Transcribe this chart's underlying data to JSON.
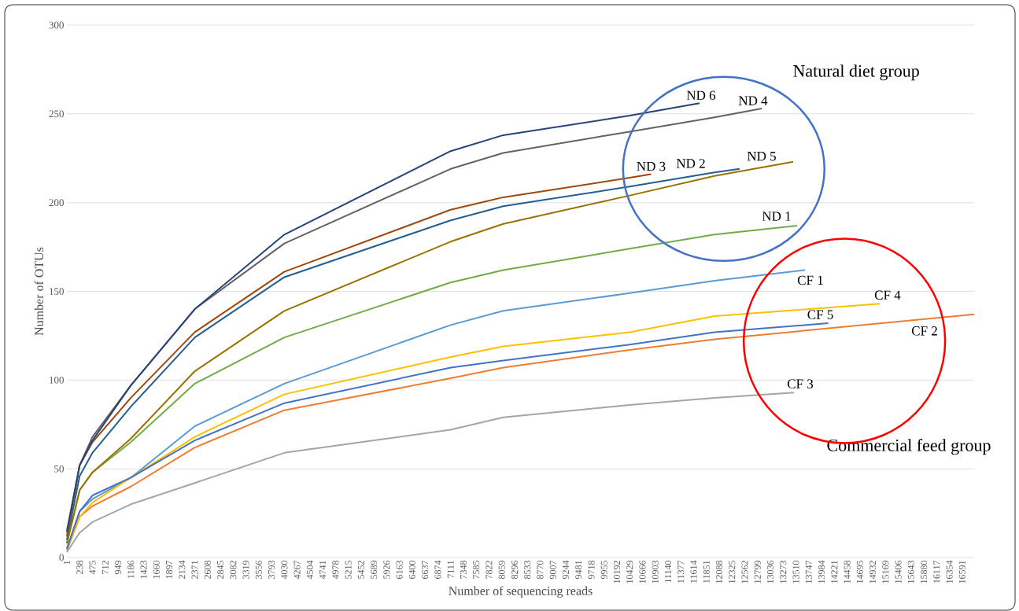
{
  "chart_data": {
    "type": "line",
    "xlabel": "Number of sequencing reads",
    "ylabel": "Number of OTUs",
    "xlim": [
      1,
      16812
    ],
    "ylim": [
      0,
      300
    ],
    "yticks": [
      0,
      50,
      100,
      150,
      200,
      250,
      300
    ],
    "xticks": [
      1,
      238,
      475,
      712,
      949,
      1186,
      1423,
      1660,
      1897,
      2134,
      2371,
      2608,
      2845,
      3082,
      3319,
      3556,
      3793,
      4030,
      4267,
      4504,
      4741,
      4978,
      5215,
      5452,
      5689,
      5926,
      6163,
      6400,
      6637,
      6874,
      7111,
      7348,
      7585,
      7822,
      8059,
      8296,
      8533,
      8770,
      9007,
      9244,
      9481,
      9718,
      9955,
      10192,
      10429,
      10666,
      10903,
      11140,
      11377,
      11614,
      11851,
      12088,
      12325,
      12562,
      12799,
      13036,
      13273,
      13510,
      13747,
      13984,
      14221,
      14458,
      14695,
      14932,
      15169,
      15406,
      15643,
      15880,
      16117,
      16354,
      16591
    ],
    "grid": "y",
    "series": [
      {
        "name": "ND 1",
        "color": "#70ad47",
        "x": [
          1,
          238,
          475,
          1186,
          2371,
          4030,
          7111,
          8086,
          10429,
          12000,
          13531
        ],
        "values": [
          8,
          38,
          48,
          65,
          98,
          124,
          155,
          162,
          174,
          182,
          187
        ]
      },
      {
        "name": "ND 2",
        "color": "#255e91",
        "x": [
          1,
          238,
          475,
          1186,
          2371,
          4030,
          7111,
          8086,
          10429,
          12000,
          12467
        ],
        "values": [
          10,
          46,
          59,
          85,
          124,
          158,
          190,
          198,
          209,
          217,
          219
        ]
      },
      {
        "name": "ND 3",
        "color": "#9e480e",
        "x": [
          1,
          238,
          475,
          1186,
          2371,
          4030,
          7111,
          8086,
          10429,
          10826
        ],
        "values": [
          12,
          52,
          65,
          90,
          127,
          161,
          196,
          203,
          214,
          216
        ]
      },
      {
        "name": "ND 4",
        "color": "#636363",
        "x": [
          1,
          238,
          475,
          1186,
          2371,
          4030,
          7111,
          8086,
          10429,
          12000,
          12875
        ],
        "values": [
          14,
          52,
          68,
          97,
          140,
          177,
          219,
          228,
          240,
          248,
          253
        ]
      },
      {
        "name": "ND 5",
        "color": "#997300",
        "x": [
          1,
          238,
          475,
          1186,
          2371,
          4030,
          7111,
          8086,
          10429,
          12000,
          13458
        ],
        "values": [
          8,
          38,
          48,
          67,
          105,
          139,
          178,
          188,
          204,
          215,
          223
        ]
      },
      {
        "name": "ND 6",
        "color": "#264478",
        "x": [
          1,
          238,
          475,
          1186,
          2371,
          4030,
          7111,
          8086,
          10429,
          11723
        ],
        "values": [
          15,
          52,
          66,
          97,
          140,
          182,
          229,
          238,
          249,
          256
        ]
      },
      {
        "name": "CF 1",
        "color": "#5b9bd5",
        "x": [
          1,
          238,
          475,
          1186,
          2371,
          4030,
          7111,
          8086,
          10429,
          12000,
          13677
        ],
        "values": [
          5,
          26,
          33,
          45,
          74,
          98,
          131,
          139,
          149,
          156,
          162
        ]
      },
      {
        "name": "CF 2",
        "color": "#ed7d31",
        "x": [
          1,
          238,
          475,
          1186,
          2371,
          4030,
          7111,
          8086,
          10429,
          12000,
          16812
        ],
        "values": [
          4,
          23,
          29,
          40,
          62,
          83,
          101,
          107,
          117,
          123,
          137
        ]
      },
      {
        "name": "CF 3",
        "color": "#a5a5a5",
        "x": [
          1,
          238,
          475,
          1186,
          2371,
          4030,
          7111,
          8086,
          10429,
          12000,
          13473
        ],
        "values": [
          3,
          14,
          20,
          30,
          42,
          59,
          72,
          79,
          86,
          90,
          93
        ]
      },
      {
        "name": "CF 4",
        "color": "#ffc000",
        "x": [
          1,
          238,
          475,
          1186,
          2371,
          4030,
          7111,
          8086,
          10429,
          12000,
          15062
        ],
        "values": [
          5,
          23,
          31,
          45,
          68,
          92,
          113,
          119,
          127,
          136,
          143
        ]
      },
      {
        "name": "CF 5",
        "color": "#4472c4",
        "x": [
          1,
          238,
          475,
          1186,
          2371,
          4030,
          7111,
          8086,
          10429,
          12000,
          14108
        ],
        "values": [
          5,
          26,
          35,
          45,
          66,
          87,
          107,
          111,
          120,
          127,
          132
        ]
      }
    ],
    "annotations": [
      "Natural diet group",
      "Commercial feed group"
    ]
  }
}
